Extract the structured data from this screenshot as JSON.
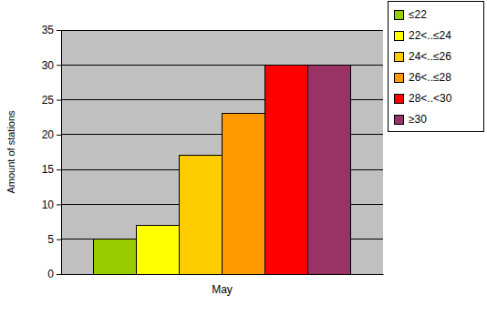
{
  "chart_data": {
    "type": "bar",
    "categories": [
      "May"
    ],
    "series": [
      {
        "name": "≤22",
        "color": "#99cc00",
        "values": [
          5
        ]
      },
      {
        "name": "22<..≤24",
        "color": "#ffff00",
        "values": [
          7
        ]
      },
      {
        "name": "24<..≤26",
        "color": "#ffcc00",
        "values": [
          17
        ]
      },
      {
        "name": "26<..≤28",
        "color": "#ff9900",
        "values": [
          23
        ]
      },
      {
        "name": "28<..<30",
        "color": "#ff0000",
        "values": [
          30
        ]
      },
      {
        "name": "≥30",
        "color": "#993366",
        "values": [
          30
        ]
      }
    ],
    "y_label": "Amount of stations",
    "ylim": [
      0,
      35
    ],
    "yticks": [
      0,
      5,
      10,
      15,
      20,
      25,
      30,
      35
    ],
    "grid": true,
    "legend": "top-right"
  }
}
